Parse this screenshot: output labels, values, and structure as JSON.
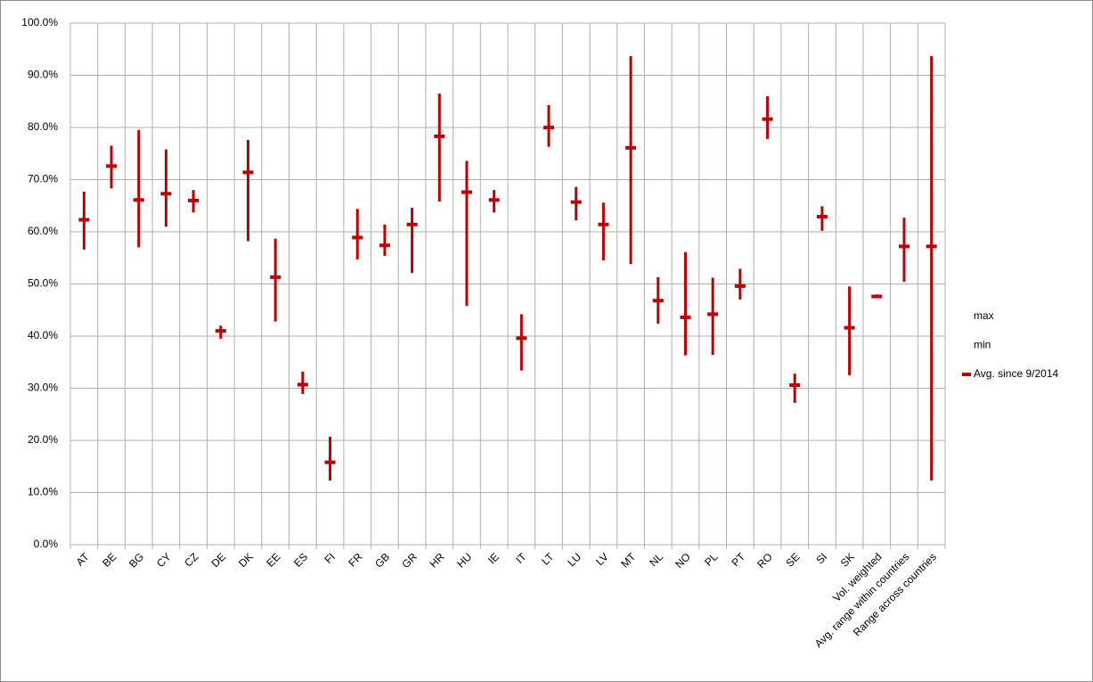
{
  "chart_data": {
    "type": "hilo",
    "categories": [
      "AT",
      "BE",
      "BG",
      "CY",
      "CZ",
      "DE",
      "DK",
      "EE",
      "ES",
      "FI",
      "FR",
      "GB",
      "GR",
      "HR",
      "HU",
      "IE",
      "IT",
      "LT",
      "LU",
      "LV",
      "MT",
      "NL",
      "NO",
      "PL",
      "PT",
      "RO",
      "SE",
      "SI",
      "SK",
      "Vol. weighted",
      "Avg. range within countries",
      "Range across countries"
    ],
    "series": [
      {
        "name": "max",
        "values": [
          67.7,
          76.5,
          79.5,
          75.8,
          68,
          42,
          77.6,
          58.7,
          33.2,
          20.7,
          64.4,
          61.4,
          64.6,
          86.5,
          73.6,
          68,
          44.2,
          84.3,
          68.6,
          65.6,
          93.7,
          51.3,
          56.1,
          51.2,
          52.9,
          86,
          32.8,
          64.9,
          49.5,
          48,
          62.7,
          93.7
        ]
      },
      {
        "name": "min",
        "values": [
          56.6,
          68.3,
          57,
          61,
          63.7,
          39.5,
          58.2,
          42.8,
          28.9,
          12.3,
          54.7,
          55.4,
          52.1,
          65.8,
          45.8,
          63.7,
          33.4,
          76.3,
          62.2,
          54.5,
          53.8,
          42.4,
          36.3,
          36.4,
          47,
          77.8,
          27.2,
          60.2,
          32.5,
          47.3,
          50.4,
          12.3
        ]
      },
      {
        "name": "Avg. since 9/2014",
        "color": "#c00000",
        "values": [
          62.3,
          72.6,
          66.1,
          67.3,
          66,
          41,
          71.4,
          51.3,
          30.7,
          15.8,
          58.9,
          57.4,
          61.4,
          78.3,
          67.6,
          66.1,
          39.6,
          80,
          65.7,
          61.4,
          76.1,
          46.8,
          43.6,
          44.2,
          49.6,
          81.6,
          30.6,
          62.9,
          41.6,
          47.6,
          57.2,
          57.2
        ]
      }
    ],
    "line_color": "#c00000",
    "ylim": [
      0,
      100
    ],
    "yticks": [
      {
        "value": 0,
        "label": "0.0%"
      },
      {
        "value": 10,
        "label": "10.0%"
      },
      {
        "value": 20,
        "label": "20.0%"
      },
      {
        "value": 30,
        "label": "30.0%"
      },
      {
        "value": 40,
        "label": "40.0%"
      },
      {
        "value": 50,
        "label": "50.0%"
      },
      {
        "value": 60,
        "label": "60.0%"
      },
      {
        "value": 70,
        "label": "70.0%"
      },
      {
        "value": 80,
        "label": "80.0%"
      },
      {
        "value": 90,
        "label": "90.0%"
      },
      {
        "value": 100,
        "label": "100.0%"
      }
    ],
    "grid": true
  }
}
